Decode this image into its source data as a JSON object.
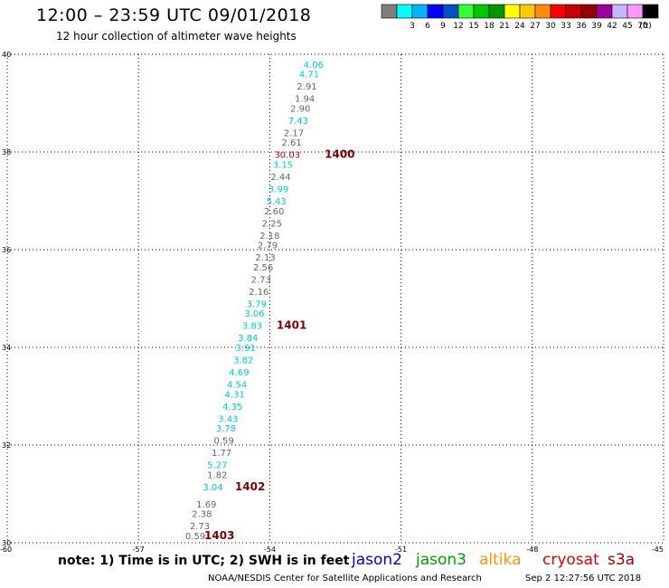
{
  "header": {
    "title": "12:00 – 23:59 UTC 09/01/2018",
    "subtitle": "12 hour collection of altimeter wave heights"
  },
  "color_scale": {
    "units": "(ft)",
    "bins": [
      {
        "color": "#7f7f7f",
        "label": ""
      },
      {
        "color": "#00ffff",
        "label": "3"
      },
      {
        "color": "#00b4ff",
        "label": "6"
      },
      {
        "color": "#0000ff",
        "label": "9"
      },
      {
        "color": "#0050c8",
        "label": "12"
      },
      {
        "color": "#32ff32",
        "label": "15"
      },
      {
        "color": "#00c800",
        "label": "18"
      },
      {
        "color": "#009600",
        "label": "21"
      },
      {
        "color": "#ffff00",
        "label": "24"
      },
      {
        "color": "#ffc800",
        "label": "27"
      },
      {
        "color": "#ff8c00",
        "label": "30"
      },
      {
        "color": "#ff0000",
        "label": "33"
      },
      {
        "color": "#c80000",
        "label": "36"
      },
      {
        "color": "#960000",
        "label": "39"
      },
      {
        "color": "#a000a0",
        "label": "42"
      },
      {
        "color": "#c8b4ff",
        "label": "45"
      },
      {
        "color": "#ff96ff",
        "label": "70"
      },
      {
        "color": "#000000",
        "label": ""
      }
    ]
  },
  "map": {
    "lon_range": [
      -60,
      -45
    ],
    "lat_range": [
      30,
      40
    ],
    "lon_ticks": [
      "-60",
      "-57",
      "-54",
      "-51",
      "-48",
      "-45"
    ],
    "lat_ticks": [
      "30",
      "32",
      "34",
      "36",
      "38",
      "40"
    ],
    "grid": "dotted",
    "colors": {
      "gray": "#666666",
      "cyan": "#00c8e6",
      "red": "#c80000",
      "time": "#800000"
    }
  },
  "chart_data": {
    "type": "scatter",
    "title": "12:00 – 23:59 UTC 09/01/2018",
    "subtitle": "12 hour collection of altimeter wave heights",
    "xlim": [
      -60,
      -45
    ],
    "ylim": [
      30,
      40
    ],
    "observations": [
      {
        "lon": -53.0,
        "lat": 39.8,
        "value": "4.06",
        "cls": "cyan"
      },
      {
        "lon": -53.1,
        "lat": 39.6,
        "value": "4.71",
        "cls": "cyan"
      },
      {
        "lon": -53.15,
        "lat": 39.35,
        "value": "2.91",
        "cls": "gray"
      },
      {
        "lon": -53.2,
        "lat": 39.1,
        "value": "1.94",
        "cls": "gray"
      },
      {
        "lon": -53.3,
        "lat": 38.9,
        "value": "2.90",
        "cls": "gray"
      },
      {
        "lon": -53.35,
        "lat": 38.65,
        "value": "7.43",
        "cls": "cyan"
      },
      {
        "lon": -53.45,
        "lat": 38.4,
        "value": "2.17",
        "cls": "gray"
      },
      {
        "lon": -53.5,
        "lat": 38.2,
        "value": "2.61",
        "cls": "gray"
      },
      {
        "lon": -53.6,
        "lat": 37.95,
        "value": "30.03",
        "cls": "red"
      },
      {
        "lon": -53.7,
        "lat": 37.75,
        "value": "3.15",
        "cls": "cyan"
      },
      {
        "lon": -53.75,
        "lat": 37.5,
        "value": "2.44",
        "cls": "gray"
      },
      {
        "lon": -53.8,
        "lat": 37.25,
        "value": "3.99",
        "cls": "cyan"
      },
      {
        "lon": -53.85,
        "lat": 37.0,
        "value": "5.43",
        "cls": "cyan"
      },
      {
        "lon": -53.9,
        "lat": 36.8,
        "value": "2.60",
        "cls": "gray"
      },
      {
        "lon": -53.95,
        "lat": 36.55,
        "value": "2.25",
        "cls": "gray"
      },
      {
        "lon": -54.0,
        "lat": 36.3,
        "value": "2.18",
        "cls": "gray"
      },
      {
        "lon": -54.05,
        "lat": 36.1,
        "value": "2.79",
        "cls": "gray"
      },
      {
        "lon": -54.1,
        "lat": 35.85,
        "value": "2.13",
        "cls": "gray"
      },
      {
        "lon": -54.15,
        "lat": 35.65,
        "value": "2.56",
        "cls": "gray"
      },
      {
        "lon": -54.2,
        "lat": 35.4,
        "value": "2.73",
        "cls": "gray"
      },
      {
        "lon": -54.25,
        "lat": 35.15,
        "value": "2.16",
        "cls": "gray"
      },
      {
        "lon": -54.3,
        "lat": 34.9,
        "value": "3.79",
        "cls": "cyan"
      },
      {
        "lon": -54.35,
        "lat": 34.7,
        "value": "3.06",
        "cls": "cyan"
      },
      {
        "lon": -54.4,
        "lat": 34.45,
        "value": "3.83",
        "cls": "cyan"
      },
      {
        "lon": -54.5,
        "lat": 34.2,
        "value": "3.84",
        "cls": "cyan"
      },
      {
        "lon": -54.55,
        "lat": 34.0,
        "value": "3.91",
        "cls": "cyan"
      },
      {
        "lon": -54.6,
        "lat": 33.75,
        "value": "3.82",
        "cls": "cyan"
      },
      {
        "lon": -54.7,
        "lat": 33.5,
        "value": "4.69",
        "cls": "cyan"
      },
      {
        "lon": -54.75,
        "lat": 33.25,
        "value": "4.54",
        "cls": "cyan"
      },
      {
        "lon": -54.8,
        "lat": 33.05,
        "value": "4.31",
        "cls": "cyan"
      },
      {
        "lon": -54.85,
        "lat": 32.8,
        "value": "4.35",
        "cls": "cyan"
      },
      {
        "lon": -54.95,
        "lat": 32.55,
        "value": "3.43",
        "cls": "cyan"
      },
      {
        "lon": -55.0,
        "lat": 32.35,
        "value": "3.78",
        "cls": "cyan"
      },
      {
        "lon": -55.05,
        "lat": 32.1,
        "value": "0.59",
        "cls": "gray"
      },
      {
        "lon": -55.1,
        "lat": 31.85,
        "value": "1.77",
        "cls": "gray"
      },
      {
        "lon": -55.2,
        "lat": 31.6,
        "value": "5.27",
        "cls": "cyan"
      },
      {
        "lon": -55.2,
        "lat": 31.4,
        "value": "1.82",
        "cls": "gray"
      },
      {
        "lon": -55.3,
        "lat": 31.15,
        "value": "3.04",
        "cls": "cyan"
      },
      {
        "lon": -55.45,
        "lat": 30.8,
        "value": "1.69",
        "cls": "gray"
      },
      {
        "lon": -55.55,
        "lat": 30.6,
        "value": "2.38",
        "cls": "gray"
      },
      {
        "lon": -55.6,
        "lat": 30.35,
        "value": "2.73",
        "cls": "gray"
      },
      {
        "lon": -55.7,
        "lat": 30.15,
        "value": "0.59",
        "cls": "gray"
      }
    ],
    "time_labels": [
      {
        "lon": -52.4,
        "lat": 37.95,
        "text": "1400"
      },
      {
        "lon": -53.5,
        "lat": 34.45,
        "text": "1401"
      },
      {
        "lon": -54.45,
        "lat": 31.15,
        "text": "1402"
      },
      {
        "lon": -55.15,
        "lat": 30.15,
        "text": "1403"
      }
    ]
  },
  "footer": {
    "note": "note: 1) Time is in UTC; 2) SWH is in feet",
    "satellites": [
      {
        "name": "jason2",
        "color": "#0000e6"
      },
      {
        "name": "jason3",
        "color": "#00a000"
      },
      {
        "name": "altika",
        "color": "#ff9600"
      },
      {
        "name": "cryosat",
        "color": "#e60000"
      },
      {
        "name": "s3a",
        "color": "#a00000"
      }
    ],
    "credit": "NOAA/NESDIS Center for Satellite Applications and Research",
    "timestamp": "Sep  2 12:27:56 UTC 2018"
  }
}
